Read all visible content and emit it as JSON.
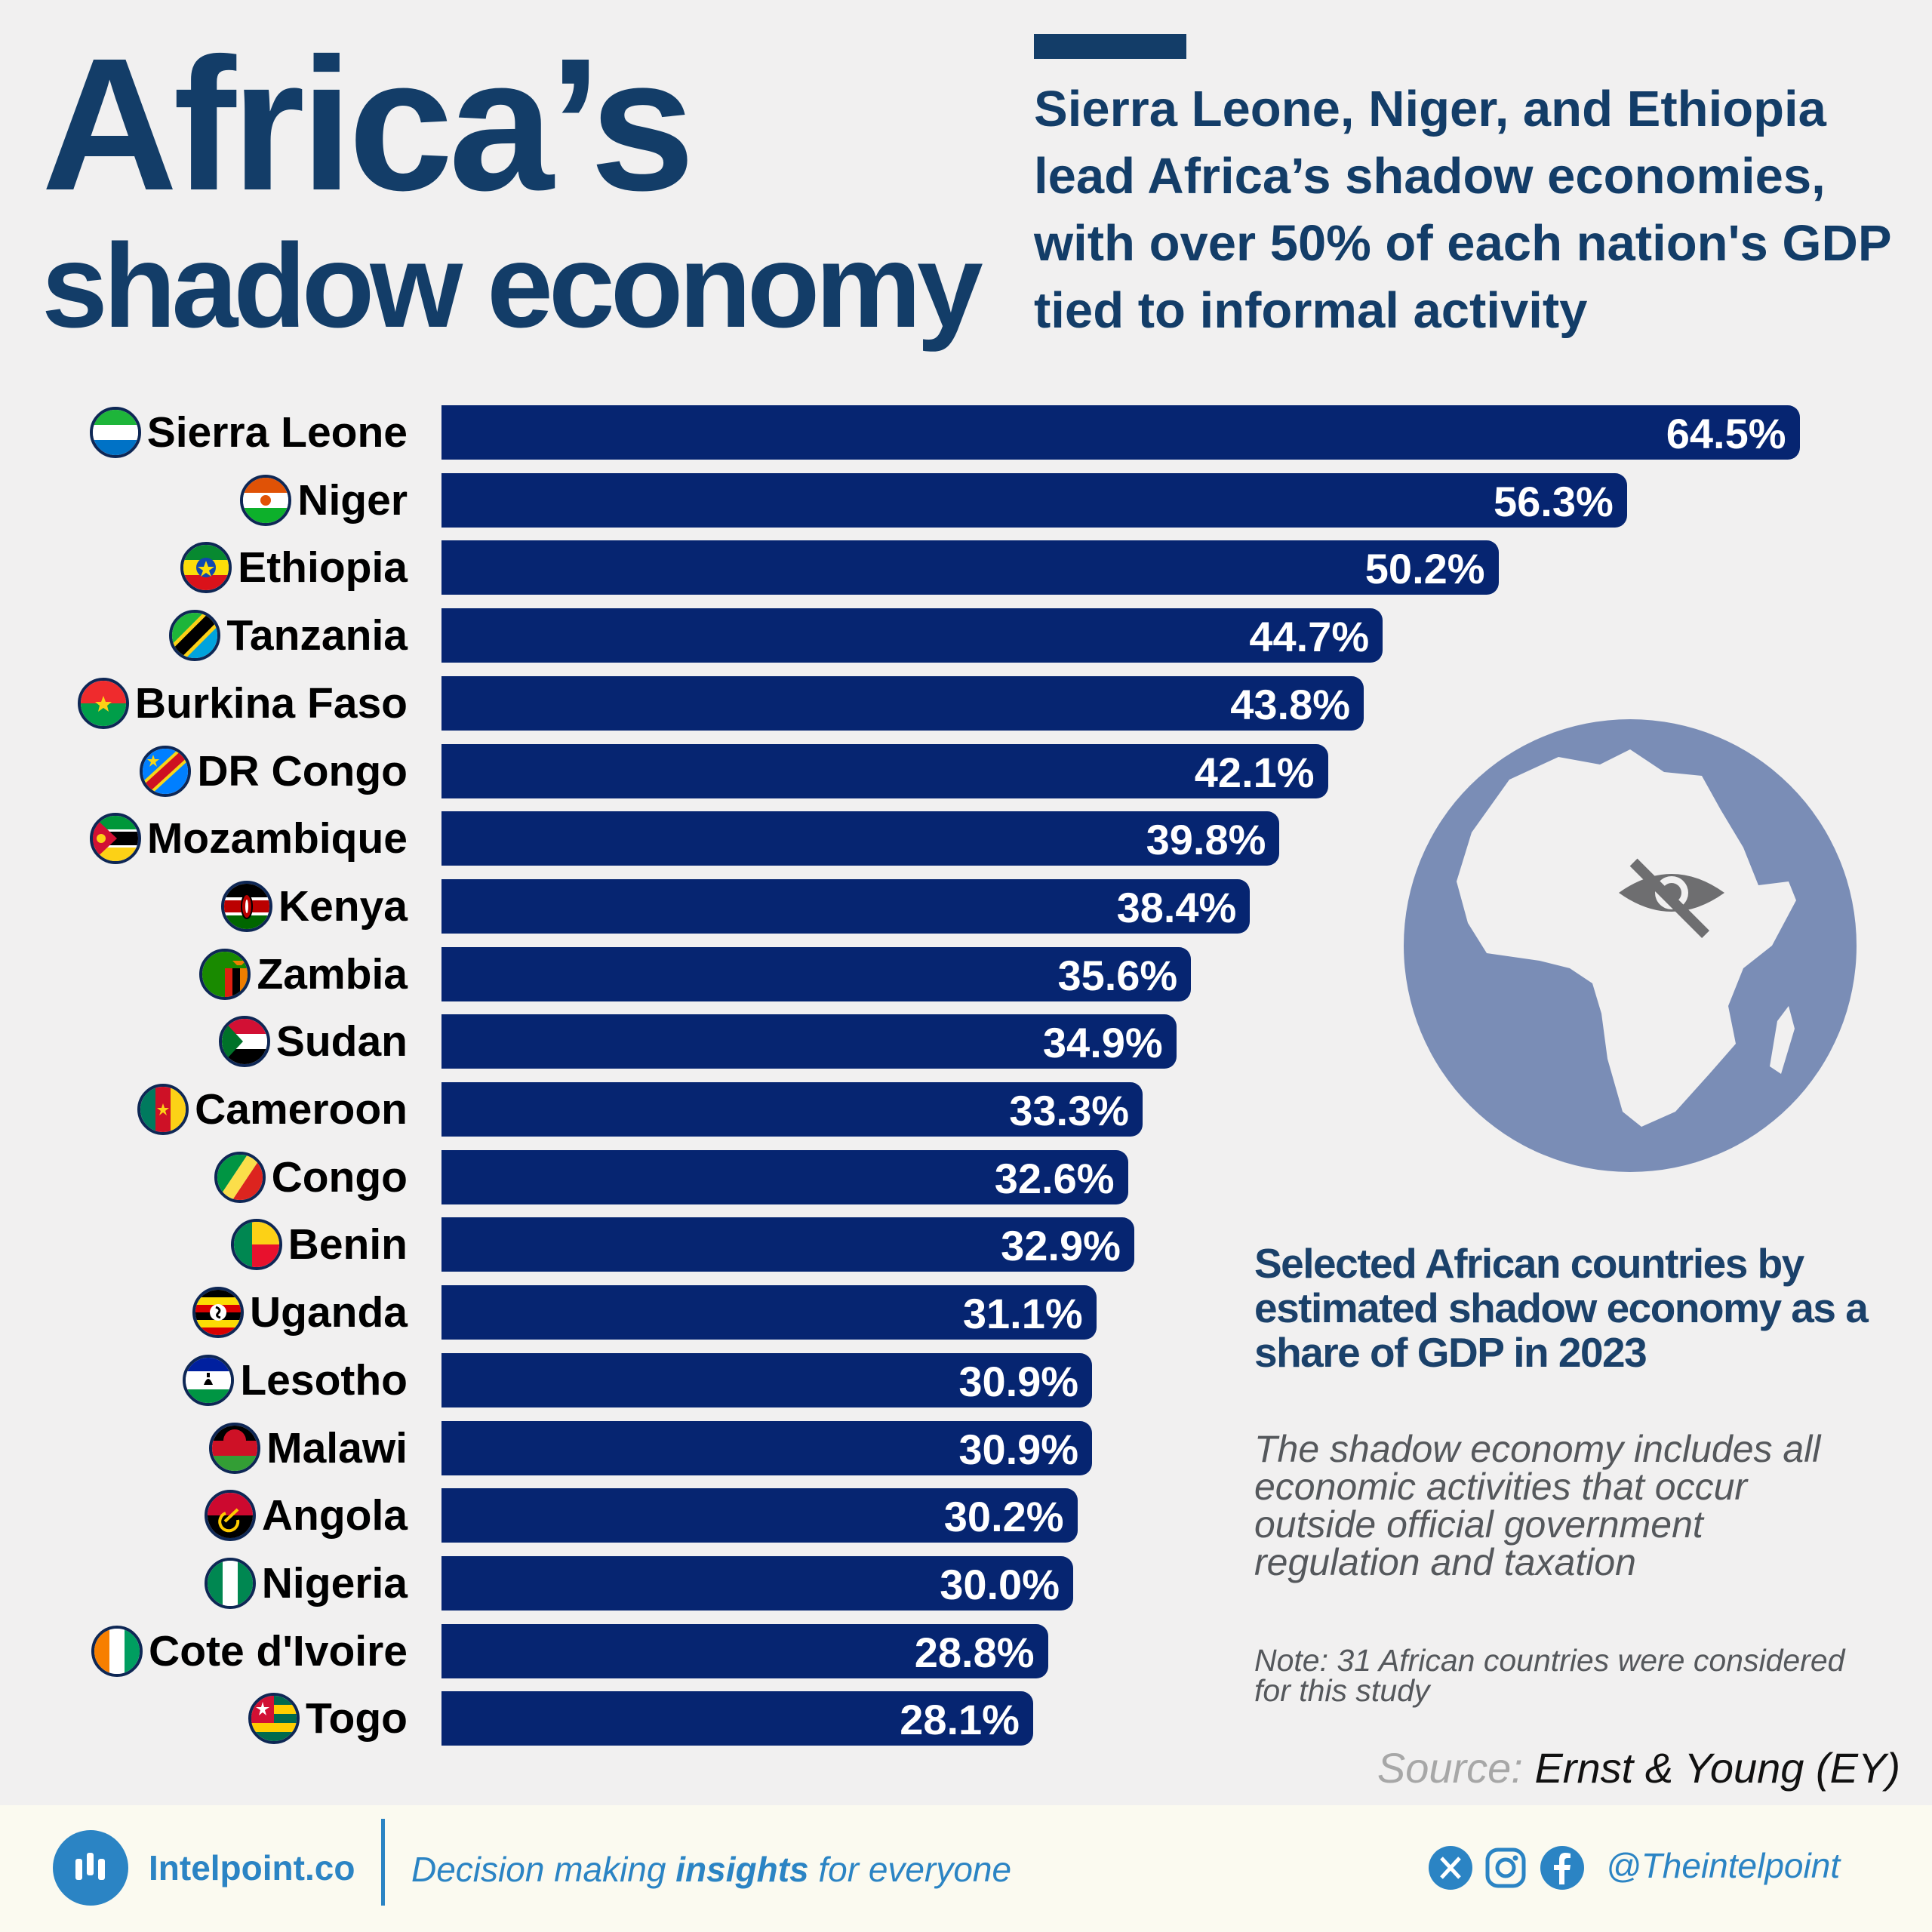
{
  "header": {
    "title_line1": "Africa’s",
    "title_line2": "shadow economy",
    "subtitle": "Sierra Leone, Niger, and Ethiopia lead Africa’s shadow economies, with over 50% of each nation's GDP tied to informal activity"
  },
  "chart_data": {
    "type": "bar",
    "orientation": "horizontal",
    "categories": [
      "Sierra Leone",
      "Niger",
      "Ethiopia",
      "Tanzania",
      "Burkina Faso",
      "DR Congo",
      "Mozambique",
      "Kenya",
      "Zambia",
      "Sudan",
      "Cameroon",
      "Congo",
      "Benin",
      "Uganda",
      "Lesotho",
      "Malawi",
      "Angola",
      "Nigeria",
      "Cote d'Ivoire",
      "Togo"
    ],
    "values": [
      64.5,
      56.3,
      50.2,
      44.7,
      43.8,
      42.1,
      39.8,
      38.4,
      35.6,
      34.9,
      33.3,
      32.6,
      32.9,
      31.1,
      30.9,
      30.9,
      30.2,
      30.0,
      28.8,
      28.1
    ],
    "value_labels": [
      "64.5%",
      "56.3%",
      "50.2%",
      "44.7%",
      "43.8%",
      "42.1%",
      "39.8%",
      "38.4%",
      "35.6%",
      "34.9%",
      "33.3%",
      "32.6%",
      "32.9%",
      "31.1%",
      "30.9%",
      "30.9%",
      "30.2%",
      "30.0%",
      "28.8%",
      "28.1%"
    ],
    "unit": "%",
    "bar_color": "#062571",
    "grid": false,
    "legend": "none"
  },
  "flags": {
    "icons": [
      "sierra-leone-flag-icon",
      "niger-flag-icon",
      "ethiopia-flag-icon",
      "tanzania-flag-icon",
      "burkina-faso-flag-icon",
      "dr-congo-flag-icon",
      "mozambique-flag-icon",
      "kenya-flag-icon",
      "zambia-flag-icon",
      "sudan-flag-icon",
      "cameroon-flag-icon",
      "congo-flag-icon",
      "benin-flag-icon",
      "uganda-flag-icon",
      "lesotho-flag-icon",
      "malawi-flag-icon",
      "angola-flag-icon",
      "nigeria-flag-icon",
      "cote-divoire-flag-icon",
      "togo-flag-icon"
    ]
  },
  "sidebar": {
    "globe_icon": "africa-hidden-eye-icon",
    "chart_description": "Selected African countries by estimated shadow economy as a share of GDP in 2023",
    "definition": "The shadow economy includes all economic activities that occur outside official government regulation and taxation",
    "note": "Note: 31 African countries were considered for this study",
    "source_label": "Source:",
    "source_value": "Ernst & Young (EY)"
  },
  "footer": {
    "brand": "Intelpoint.co",
    "tagline_pre": "Decision making ",
    "tagline_bold": "insights",
    "tagline_post": " for everyone",
    "handle": "@Theintelpoint",
    "social_icons": [
      "x-icon",
      "instagram-icon",
      "facebook-icon"
    ]
  },
  "colors": {
    "primary_navy": "#133d68",
    "bar": "#062571",
    "globe": "#7a8db6",
    "brand_blue": "#2b84c4"
  }
}
